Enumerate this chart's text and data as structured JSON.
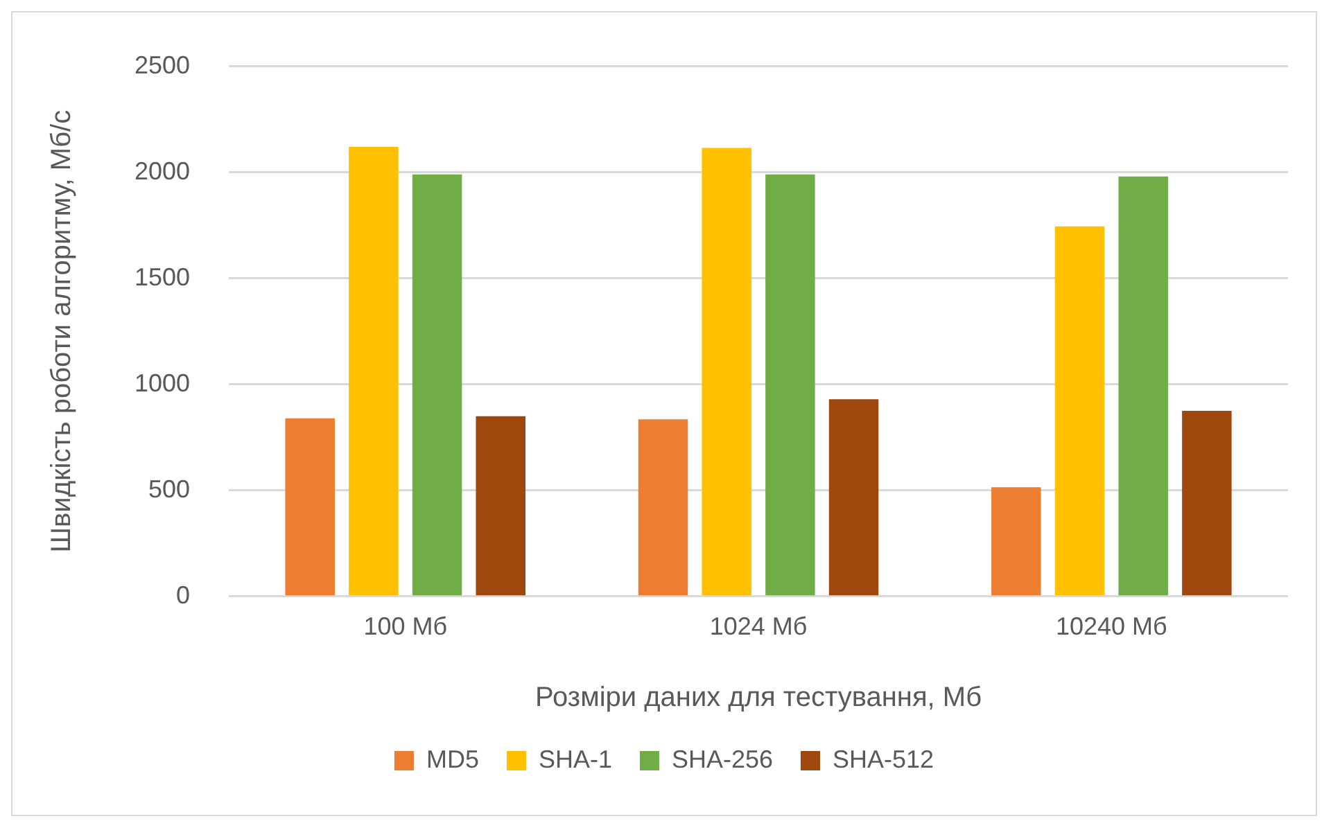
{
  "chart_data": {
    "type": "bar",
    "xlabel": "Розміри даних для тестування, Мб",
    "ylabel": "Швидкість роботи алгоритму, Мб/с",
    "categories": [
      "100 Мб",
      "1024 Мб",
      "10240 Мб"
    ],
    "series": [
      {
        "name": "MD5",
        "color": "#ed7d31",
        "values": [
          840,
          835,
          515
        ]
      },
      {
        "name": "SHA-1",
        "color": "#ffc000",
        "values": [
          2120,
          2115,
          1745
        ]
      },
      {
        "name": "SHA-256",
        "color": "#70ad47",
        "values": [
          1990,
          1990,
          1980
        ]
      },
      {
        "name": "SHA-512",
        "color": "#9e480e",
        "values": [
          850,
          930,
          875
        ]
      }
    ],
    "ylim": [
      0,
      2500
    ],
    "yticks": [
      0,
      500,
      1000,
      1500,
      2000,
      2500
    ],
    "grid": "y",
    "legend": "bottom"
  }
}
